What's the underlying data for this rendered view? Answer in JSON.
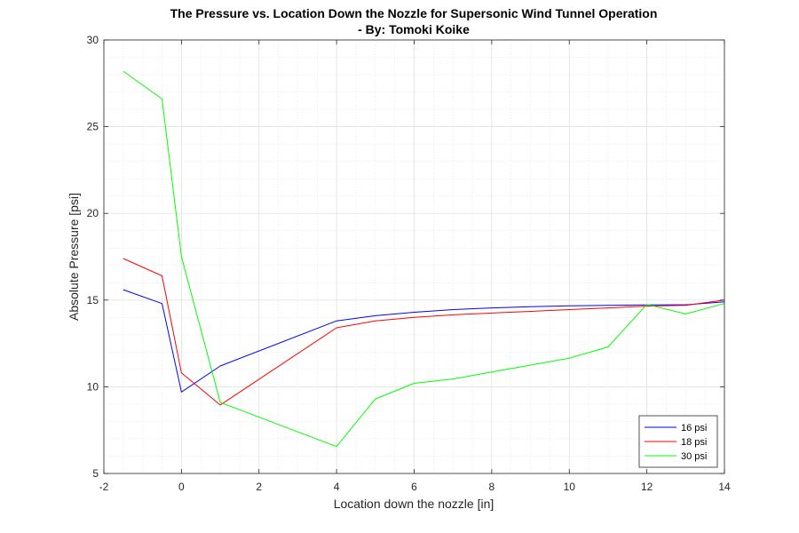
{
  "chart_data": {
    "type": "line",
    "title_line1": "The Pressure vs. Location Down the Nozzle for Supersonic Wind Tunnel Operation",
    "title_line2": "- By: Tomoki Koike",
    "xlabel": "Location down the nozzle [in]",
    "ylabel": "Absolute Pressure [psi]",
    "xlim": [
      -2,
      14
    ],
    "ylim": [
      5,
      30
    ],
    "xticks": [
      -2,
      0,
      2,
      4,
      6,
      8,
      10,
      12,
      14
    ],
    "yticks": [
      5,
      10,
      15,
      20,
      25,
      30
    ],
    "grid": true,
    "minor_grid": true,
    "legend_position": "bottom-right",
    "series": [
      {
        "name": "16 psi",
        "color": "#0000ff",
        "x": [
          -1.5,
          -0.5,
          0,
          1,
          4,
          5,
          6,
          7,
          8,
          9,
          10,
          11,
          12,
          13,
          14
        ],
        "y": [
          15.6,
          14.8,
          9.7,
          11.2,
          13.8,
          14.1,
          14.3,
          14.45,
          14.55,
          14.62,
          14.67,
          14.7,
          14.72,
          14.73,
          14.9
        ]
      },
      {
        "name": "18 psi",
        "color": "#ff0000",
        "x": [
          -1.5,
          -0.5,
          0,
          1,
          4,
          5,
          6,
          7,
          8,
          9,
          10,
          11,
          12,
          13,
          14
        ],
        "y": [
          17.4,
          16.4,
          10.8,
          8.95,
          13.4,
          13.8,
          14.0,
          14.15,
          14.25,
          14.35,
          14.45,
          14.55,
          14.65,
          14.7,
          15.0
        ]
      },
      {
        "name": "30 psi",
        "color": "#00ff00",
        "x": [
          -1.5,
          -0.5,
          0,
          1,
          4,
          5,
          6,
          7,
          8,
          9,
          10,
          11,
          12,
          13,
          14
        ],
        "y": [
          28.2,
          26.6,
          17.5,
          9.1,
          6.55,
          9.3,
          10.2,
          10.45,
          10.85,
          11.25,
          11.65,
          12.3,
          14.75,
          14.2,
          14.8
        ]
      }
    ]
  }
}
